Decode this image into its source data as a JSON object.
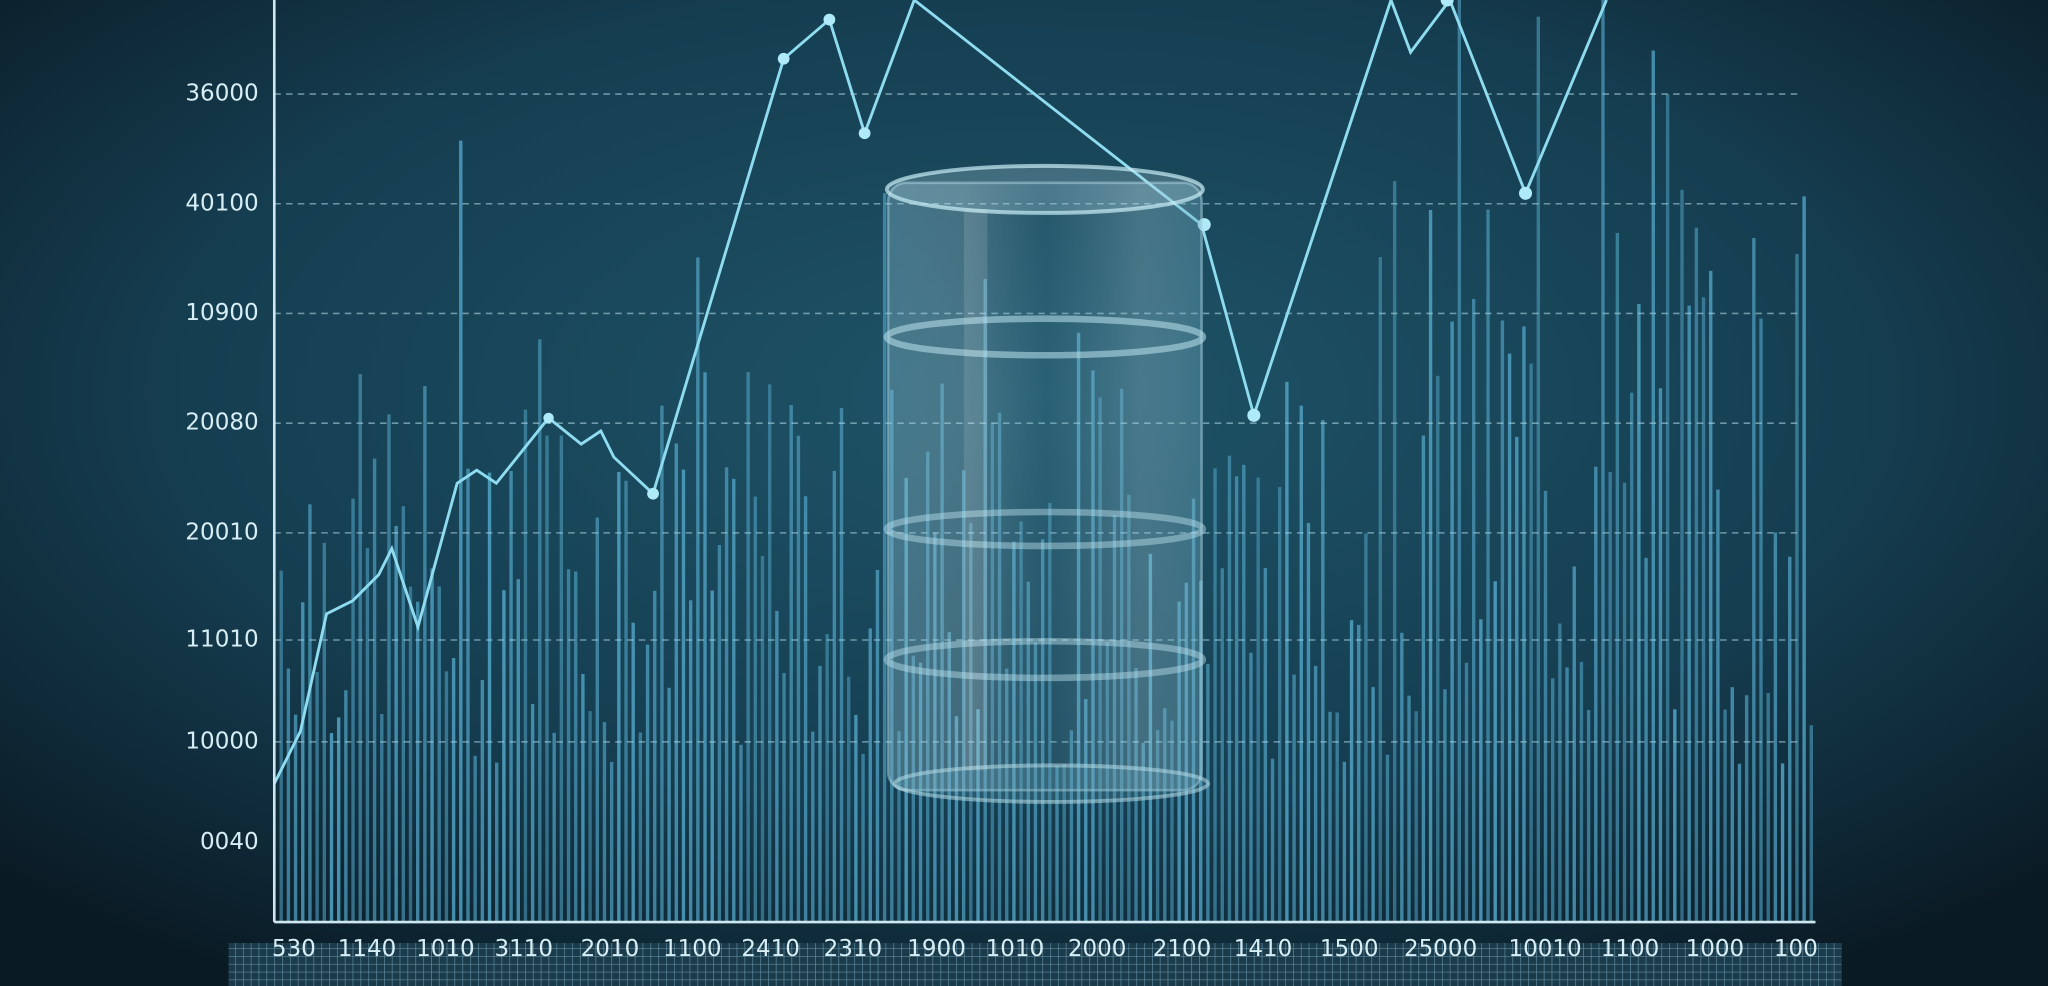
{
  "y_axis_labels": [
    "36000",
    "40100",
    "10900",
    "20080",
    "20010",
    "11010",
    "10000",
    "0040"
  ],
  "x_axis_labels": [
    "530",
    "1140",
    "1010",
    "3110",
    "2010",
    "1100",
    "2410",
    "2310",
    "1900",
    "1010",
    "2000",
    "2100",
    "1410",
    "1500",
    "25000",
    "10010",
    "1100",
    "1000",
    "100"
  ]
}
